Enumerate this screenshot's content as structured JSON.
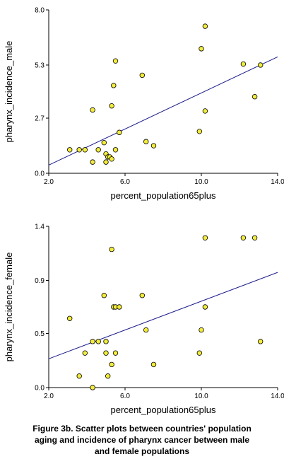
{
  "chart_data": [
    {
      "type": "scatter",
      "xlabel": "percent_population65plus",
      "ylabel": "pharynx_incidence_male",
      "xlim": [
        2.0,
        14.0
      ],
      "ylim": [
        0.0,
        8.0
      ],
      "xticks": [
        "2.0",
        "6.0",
        "10.0",
        "14.0"
      ],
      "yticks": [
        "0.0",
        "2.7",
        "5.3",
        "8.0"
      ],
      "xtick_values": [
        2.0,
        6.0,
        10.0,
        14.0
      ],
      "ytick_values": [
        0.0,
        2.7,
        5.3,
        8.0
      ],
      "grid": false,
      "trendline": [
        [
          2.0,
          0.4
        ],
        [
          14.0,
          5.7
        ]
      ],
      "points": [
        [
          3.1,
          1.15
        ],
        [
          3.6,
          1.15
        ],
        [
          3.9,
          1.15
        ],
        [
          4.3,
          0.55
        ],
        [
          4.3,
          3.1
        ],
        [
          4.6,
          1.15
        ],
        [
          4.9,
          1.5
        ],
        [
          5.0,
          0.55
        ],
        [
          5.0,
          0.95
        ],
        [
          5.1,
          0.8
        ],
        [
          5.2,
          0.8
        ],
        [
          5.3,
          0.7
        ],
        [
          5.3,
          3.3
        ],
        [
          5.4,
          4.3
        ],
        [
          5.5,
          5.5
        ],
        [
          5.5,
          1.15
        ],
        [
          5.7,
          2.0
        ],
        [
          6.9,
          4.8
        ],
        [
          7.1,
          1.55
        ],
        [
          7.5,
          1.35
        ],
        [
          9.9,
          2.05
        ],
        [
          10.0,
          6.1
        ],
        [
          10.2,
          7.2
        ],
        [
          10.2,
          3.05
        ],
        [
          12.2,
          5.35
        ],
        [
          12.8,
          3.75
        ],
        [
          13.1,
          5.3
        ]
      ]
    },
    {
      "type": "scatter",
      "xlabel": "percent_population65plus",
      "ylabel": "pharynx_incidence_female",
      "xlim": [
        2.0,
        14.0
      ],
      "ylim": [
        0.0,
        1.4
      ],
      "xticks": [
        "2.0",
        "6.0",
        "10.0",
        "14.0"
      ],
      "yticks": [
        "0.0",
        "0.5",
        "0.9",
        "1.4"
      ],
      "xtick_values": [
        2.0,
        6.0,
        10.0,
        14.0
      ],
      "ytick_values": [
        0.0,
        0.47,
        0.93,
        1.4
      ],
      "grid": false,
      "trendline": [
        [
          2.0,
          0.25
        ],
        [
          14.0,
          1.0
        ]
      ],
      "points": [
        [
          3.1,
          0.6
        ],
        [
          3.6,
          0.1
        ],
        [
          3.9,
          0.3
        ],
        [
          4.3,
          0.0
        ],
        [
          4.3,
          0.4
        ],
        [
          4.6,
          0.4
        ],
        [
          4.9,
          0.8
        ],
        [
          5.0,
          0.4
        ],
        [
          5.0,
          0.3
        ],
        [
          5.1,
          0.1
        ],
        [
          5.3,
          0.2
        ],
        [
          5.3,
          1.2
        ],
        [
          5.4,
          0.7
        ],
        [
          5.5,
          0.7
        ],
        [
          5.5,
          0.3
        ],
        [
          5.7,
          0.7
        ],
        [
          6.9,
          0.8
        ],
        [
          7.1,
          0.5
        ],
        [
          7.5,
          0.2
        ],
        [
          9.9,
          0.3
        ],
        [
          10.0,
          0.5
        ],
        [
          10.2,
          1.3
        ],
        [
          10.2,
          0.7
        ],
        [
          12.2,
          1.3
        ],
        [
          12.8,
          1.3
        ],
        [
          13.1,
          0.4
        ]
      ]
    }
  ],
  "caption": {
    "line1": "Figure 3b. Scatter plots between countries' population",
    "line2": "aging and incidence of pharynx cancer between male",
    "line3": "and female populations"
  }
}
